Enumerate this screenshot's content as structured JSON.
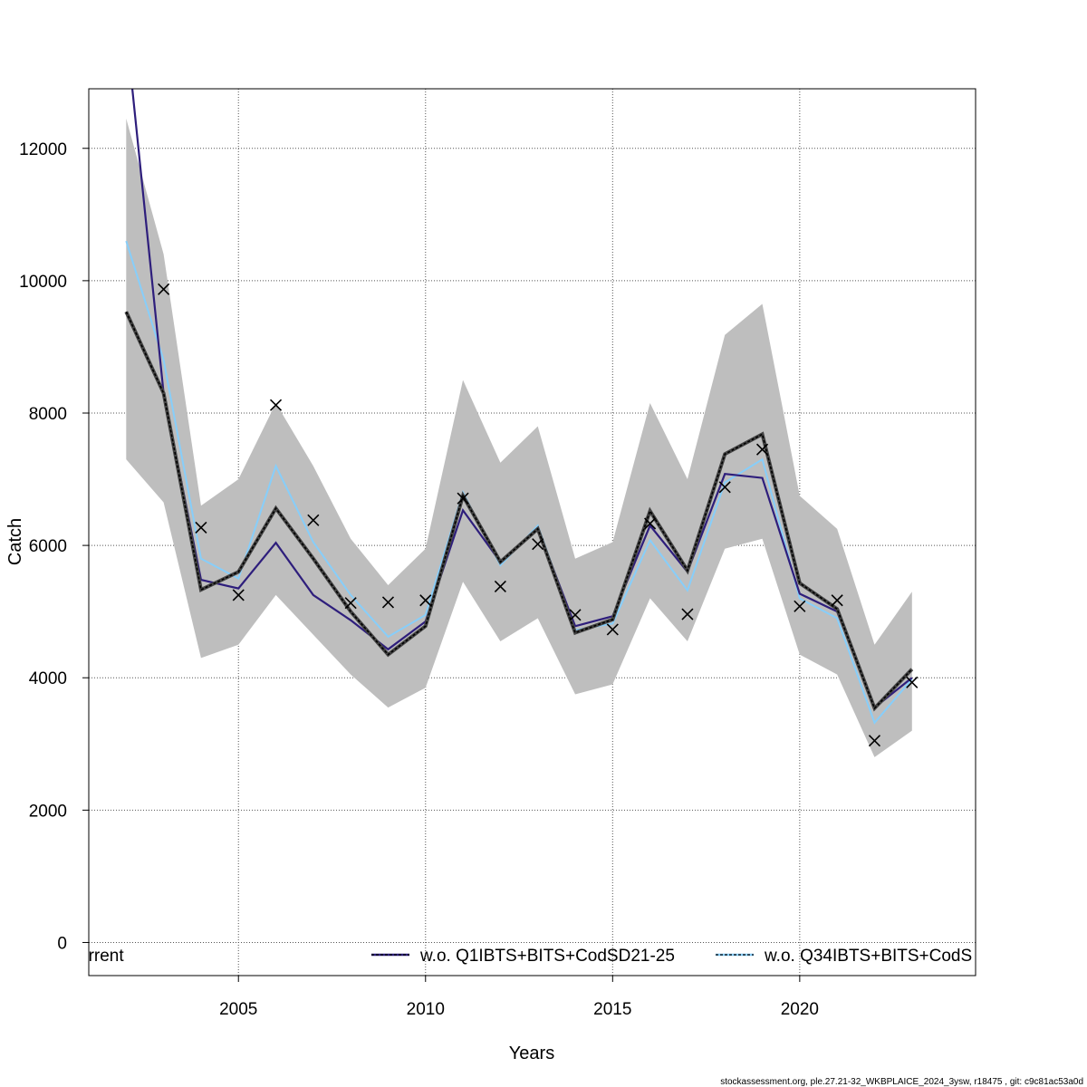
{
  "chart_data": {
    "type": "line",
    "xlabel": "Years",
    "ylabel": "Catch",
    "xlim": [
      2001.0,
      2024.7
    ],
    "ylim": [
      -500,
      12900
    ],
    "x_ticks": [
      2005,
      2010,
      2015,
      2020
    ],
    "y_ticks": [
      0,
      2000,
      4000,
      6000,
      8000,
      10000,
      12000
    ],
    "grid": true,
    "years": [
      2002,
      2003,
      2004,
      2005,
      2006,
      2007,
      2008,
      2009,
      2010,
      2011,
      2012,
      2013,
      2014,
      2015,
      2016,
      2017,
      2018,
      2019,
      2020,
      2021,
      2022,
      2023
    ],
    "confidence_band": {
      "color": "#bebebe",
      "lower": [
        7300,
        6650,
        4300,
        4500,
        5250,
        4650,
        4050,
        3550,
        3850,
        5450,
        4550,
        4900,
        3750,
        3900,
        5200,
        4550,
        5950,
        6100,
        4350,
        4050,
        2800,
        3200
      ],
      "upper": [
        12450,
        10400,
        6600,
        7000,
        8150,
        7200,
        6100,
        5400,
        5950,
        8500,
        7250,
        7800,
        5800,
        6050,
        8150,
        7000,
        9180,
        9650,
        6750,
        6250,
        4500,
        5300
      ]
    },
    "series": [
      {
        "name": "urrent",
        "color": "#000000",
        "values": [
          9530,
          8300,
          5330,
          5600,
          6560,
          5800,
          5000,
          4350,
          4780,
          6750,
          5750,
          6250,
          4680,
          4880,
          6520,
          5620,
          7380,
          7680,
          5430,
          5040,
          3540,
          4130
        ]
      },
      {
        "name": "w.o. Q1IBTS+BITS+CodSD21-25",
        "color": "#2e1e7c",
        "values": [
          13800,
          8300,
          5480,
          5350,
          6040,
          5250,
          4870,
          4430,
          4850,
          6530,
          5750,
          6250,
          4780,
          4930,
          6300,
          5600,
          7080,
          7020,
          5270,
          5000,
          3550,
          4000
        ]
      },
      {
        "name": "w.o. Q34IBTS+BITS+CodS",
        "color": "#87cefa",
        "values": [
          10600,
          8800,
          5800,
          5500,
          7200,
          6050,
          5250,
          4620,
          4950,
          6800,
          5700,
          6300,
          4720,
          4820,
          6080,
          5320,
          6950,
          7300,
          5200,
          4900,
          3320,
          3980
        ]
      }
    ],
    "observations": {
      "marker": "x",
      "values": [
        null,
        9870,
        6270,
        5250,
        8120,
        6380,
        5130,
        5140,
        5170,
        6710,
        5380,
        6020,
        4950,
        4730,
        6330,
        4960,
        6880,
        7450,
        5080,
        5170,
        3050,
        3930
      ]
    },
    "legend": {
      "placement": "bottom",
      "entries": [
        "urrent",
        "w.o. Q1IBTS+BITS+CodSD21-25",
        "w.o. Q34IBTS+BITS+CodS"
      ]
    },
    "footer": "stockassessment.org, ple.27.21-32_WKBPLAICE_2024_3ysw, r18475 , git: c9c81ac53a0d"
  }
}
